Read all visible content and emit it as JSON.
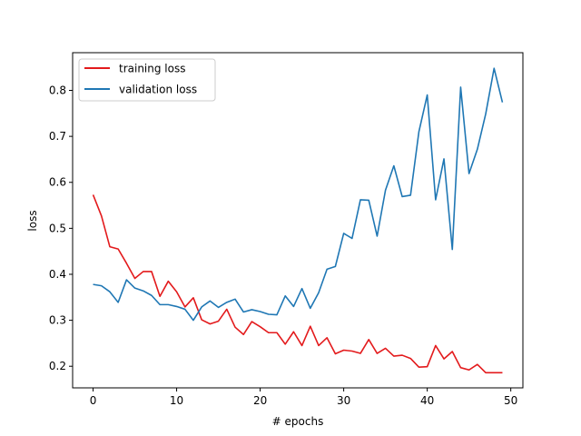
{
  "chart_data": {
    "type": "line",
    "title": "",
    "xlabel": "# epochs",
    "ylabel": "loss",
    "xlim": [
      -2.45,
      51.45
    ],
    "ylim": [
      0.153,
      0.882
    ],
    "x_ticks": [
      0,
      10,
      20,
      30,
      40,
      50
    ],
    "y_ticks": [
      0.2,
      0.3,
      0.4,
      0.5,
      0.6,
      0.7,
      0.8
    ],
    "y_tick_labels": [
      "0.2",
      "0.3",
      "0.4",
      "0.5",
      "0.6",
      "0.7",
      "0.8"
    ],
    "grid": false,
    "legend_position": "top-left",
    "x": [
      0,
      1,
      2,
      3,
      4,
      5,
      6,
      7,
      8,
      9,
      10,
      11,
      12,
      13,
      14,
      15,
      16,
      17,
      18,
      19,
      20,
      21,
      22,
      23,
      24,
      25,
      26,
      27,
      28,
      29,
      30,
      31,
      32,
      33,
      34,
      35,
      36,
      37,
      38,
      39,
      40,
      41,
      42,
      43,
      44,
      45,
      46,
      47,
      48,
      49
    ],
    "series": [
      {
        "name": "training loss",
        "color": "#e31a1c",
        "values": [
          0.573,
          0.527,
          0.46,
          0.455,
          0.424,
          0.391,
          0.406,
          0.406,
          0.352,
          0.385,
          0.362,
          0.329,
          0.349,
          0.301,
          0.292,
          0.298,
          0.324,
          0.285,
          0.269,
          0.297,
          0.286,
          0.273,
          0.273,
          0.248,
          0.275,
          0.245,
          0.287,
          0.245,
          0.262,
          0.227,
          0.235,
          0.233,
          0.228,
          0.258,
          0.228,
          0.239,
          0.222,
          0.224,
          0.217,
          0.198,
          0.199,
          0.245,
          0.216,
          0.232,
          0.197,
          0.192,
          0.204,
          0.186,
          0.186,
          0.186
        ]
      },
      {
        "name": "validation loss",
        "color": "#1f77b4",
        "values": [
          0.378,
          0.375,
          0.362,
          0.339,
          0.388,
          0.37,
          0.364,
          0.354,
          0.334,
          0.334,
          0.33,
          0.324,
          0.3,
          0.329,
          0.342,
          0.328,
          0.339,
          0.346,
          0.318,
          0.323,
          0.319,
          0.313,
          0.312,
          0.353,
          0.33,
          0.369,
          0.326,
          0.36,
          0.411,
          0.417,
          0.489,
          0.478,
          0.562,
          0.561,
          0.483,
          0.583,
          0.636,
          0.569,
          0.572,
          0.71,
          0.79,
          0.562,
          0.651,
          0.454,
          0.807,
          0.619,
          0.672,
          0.749,
          0.848,
          0.774
        ]
      }
    ]
  }
}
